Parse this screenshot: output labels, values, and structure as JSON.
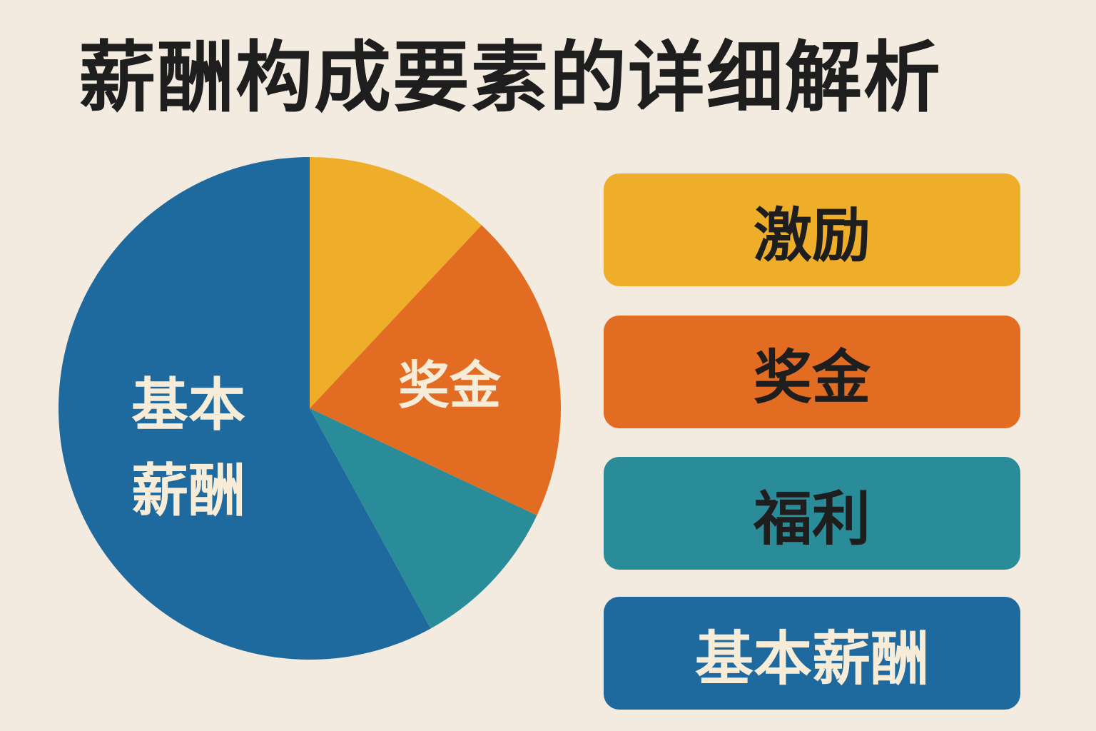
{
  "title": "薪酬构成要素的详细解析",
  "chart_data": {
    "type": "pie",
    "title": "薪酬构成要素的详细解析",
    "slices": [
      {
        "label": "激励",
        "value": 12,
        "color": "#efae2a",
        "show_label": false
      },
      {
        "label": "奖金",
        "value": 20,
        "color": "#e26c22",
        "show_label": true,
        "label_color": "#f7ecd8"
      },
      {
        "label": "福利",
        "value": 10,
        "color": "#2b8c99",
        "show_label": false
      },
      {
        "label": "基本薪酬",
        "value": 58,
        "color": "#1e6a9e",
        "show_label": true,
        "label_color": "#f7ecd8"
      }
    ],
    "pie_labels": {
      "bonus": "奖金",
      "base_line1": "基本",
      "base_line2": "薪酬"
    },
    "legend_placement": "right",
    "legend": [
      {
        "label": "激励",
        "color": "#efae2a",
        "text_color": "#1e1e1e"
      },
      {
        "label": "奖金",
        "color": "#e26c22",
        "text_color": "#1e1e1e"
      },
      {
        "label": "福利",
        "color": "#2b8c99",
        "text_color": "#1e1e1e"
      },
      {
        "label": "基本薪酬",
        "color": "#1e6a9e",
        "text_color": "#f7ecd8"
      }
    ]
  }
}
